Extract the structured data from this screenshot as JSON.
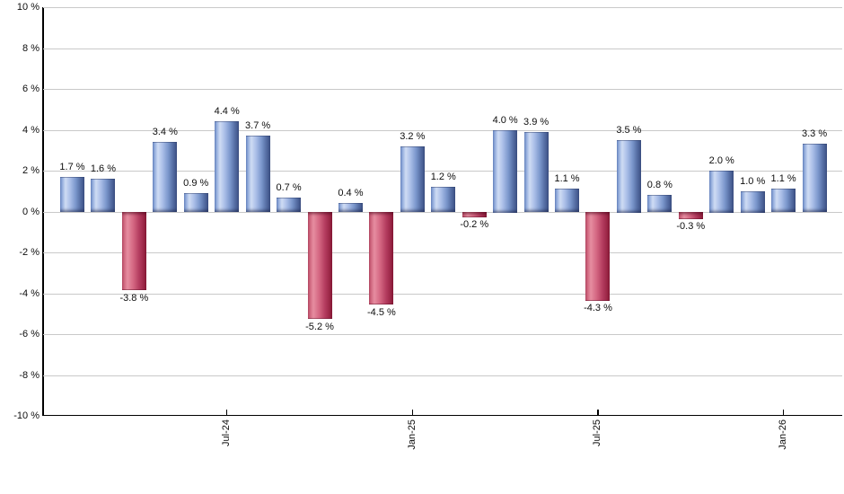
{
  "chart_data": {
    "type": "bar",
    "values": [
      1.7,
      1.6,
      -3.8,
      3.4,
      0.9,
      4.4,
      3.7,
      0.7,
      -5.2,
      0.4,
      -4.5,
      3.2,
      1.2,
      -0.2,
      4.0,
      3.9,
      1.1,
      -4.3,
      3.5,
      0.8,
      -0.3,
      2.0,
      1.0,
      1.1,
      3.3
    ],
    "value_labels": [
      "1.7 %",
      "1.6 %",
      "-3.8 %",
      "3.4 %",
      "0.9 %",
      "4.4 %",
      "3.7 %",
      "0.7 %",
      "-5.2 %",
      "0.4 %",
      "-4.5 %",
      "3.2 %",
      "1.2 %",
      "-0.2 %",
      "4.0 %",
      "3.9 %",
      "1.1 %",
      "-4.3 %",
      "3.5 %",
      "0.8 %",
      "-0.3 %",
      "2.0 %",
      "1.0 %",
      "1.1 %",
      "3.3 %"
    ],
    "bar_count": 25,
    "y_tick_labels": [
      "10 %",
      "8 %",
      "6 %",
      "4 %",
      "2 %",
      "0 %",
      "-2 %",
      "-4 %",
      "-6 %",
      "-8 %",
      "-10 %"
    ],
    "y_tick_values": [
      10,
      8,
      6,
      4,
      2,
      0,
      -2,
      -4,
      -6,
      -8,
      -10
    ],
    "ylim": [
      -10,
      10
    ],
    "x_ticks": [
      {
        "index": 5,
        "label": "Jul-24"
      },
      {
        "index": 11,
        "label": "Jan-25"
      },
      {
        "index": 17,
        "label": "Jul-25"
      },
      {
        "index": 23,
        "label": "Jan-26"
      }
    ],
    "grid": "horizontal",
    "legend": "none",
    "colors": {
      "positive_bar_main": "#7b97cc",
      "positive_bar_highlight": "#cfdcf4",
      "positive_bar_dark": "#3e5388",
      "negative_bar_main": "#d46782",
      "negative_bar_highlight": "#e68da0",
      "negative_bar_dark": "#8c1a38",
      "gridline": "#c9c9c9",
      "axis": "#000000",
      "label_text": "#0d0d0d",
      "background": "#ffffff"
    }
  }
}
